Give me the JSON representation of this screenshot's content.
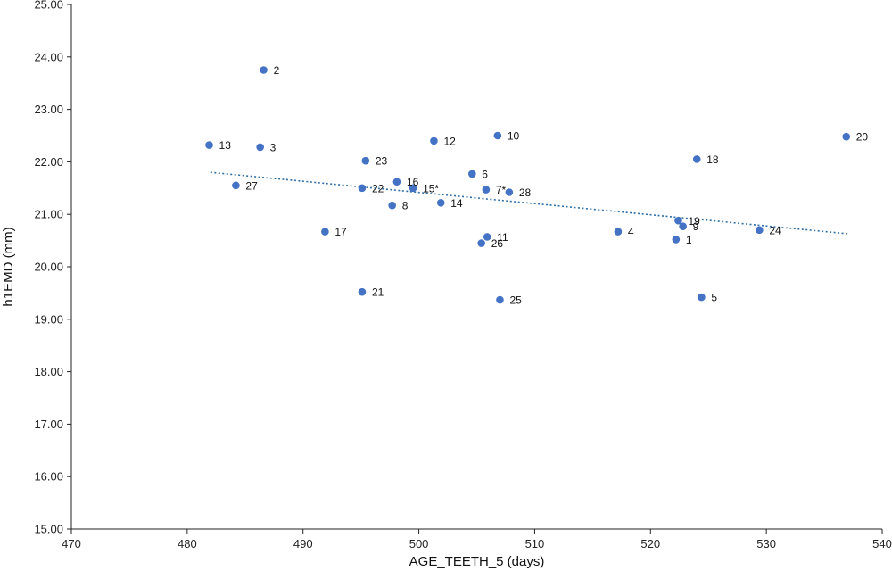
{
  "chart_data": {
    "type": "scatter",
    "title": "",
    "xlabel": "AGE_TEETH_5 (days)",
    "ylabel": "h1EMD (mm)",
    "xlim": [
      470,
      540
    ],
    "ylim": [
      15,
      25
    ],
    "xticks": [
      "470",
      "480",
      "490",
      "500",
      "510",
      "520",
      "530",
      "540"
    ],
    "yticks": [
      "15.00",
      "16.00",
      "17.00",
      "18.00",
      "19.00",
      "20.00",
      "21.00",
      "22.00",
      "23.00",
      "24.00",
      "25.00"
    ],
    "grid": false,
    "point_color": "#4472C4",
    "trendline": {
      "style": "dotted",
      "color": "#2E6FA8",
      "x": [
        482,
        537
      ],
      "y": [
        21.8,
        20.63
      ]
    },
    "points": [
      {
        "label": "1",
        "x": 522.2,
        "y": 20.52
      },
      {
        "label": "2",
        "x": 486.6,
        "y": 23.75
      },
      {
        "label": "3",
        "x": 486.3,
        "y": 22.28
      },
      {
        "label": "4",
        "x": 517.2,
        "y": 20.67
      },
      {
        "label": "5",
        "x": 524.4,
        "y": 19.42
      },
      {
        "label": "6",
        "x": 504.6,
        "y": 21.77
      },
      {
        "label": "7*",
        "x": 505.8,
        "y": 21.47
      },
      {
        "label": "8",
        "x": 497.7,
        "y": 21.17
      },
      {
        "label": "9",
        "x": 522.8,
        "y": 20.77
      },
      {
        "label": "10",
        "x": 506.8,
        "y": 22.5
      },
      {
        "label": "11",
        "x": 505.9,
        "y": 20.57
      },
      {
        "label": "12",
        "x": 501.3,
        "y": 22.4
      },
      {
        "label": "13",
        "x": 481.9,
        "y": 22.32
      },
      {
        "label": "14",
        "x": 501.9,
        "y": 21.22
      },
      {
        "label": "15*",
        "x": 499.5,
        "y": 21.5
      },
      {
        "label": "16",
        "x": 498.1,
        "y": 21.62
      },
      {
        "label": "17",
        "x": 491.9,
        "y": 20.67
      },
      {
        "label": "18",
        "x": 524.0,
        "y": 22.05
      },
      {
        "label": "19",
        "x": 522.4,
        "y": 20.88
      },
      {
        "label": "20",
        "x": 536.9,
        "y": 22.48
      },
      {
        "label": "21",
        "x": 495.1,
        "y": 19.52
      },
      {
        "label": "22",
        "x": 495.1,
        "y": 21.5
      },
      {
        "label": "23",
        "x": 495.4,
        "y": 22.02
      },
      {
        "label": "24",
        "x": 529.4,
        "y": 20.7
      },
      {
        "label": "25",
        "x": 507.0,
        "y": 19.37
      },
      {
        "label": "26",
        "x": 505.4,
        "y": 20.45
      },
      {
        "label": "27",
        "x": 484.2,
        "y": 21.55
      },
      {
        "label": "28",
        "x": 507.8,
        "y": 21.42
      }
    ]
  }
}
